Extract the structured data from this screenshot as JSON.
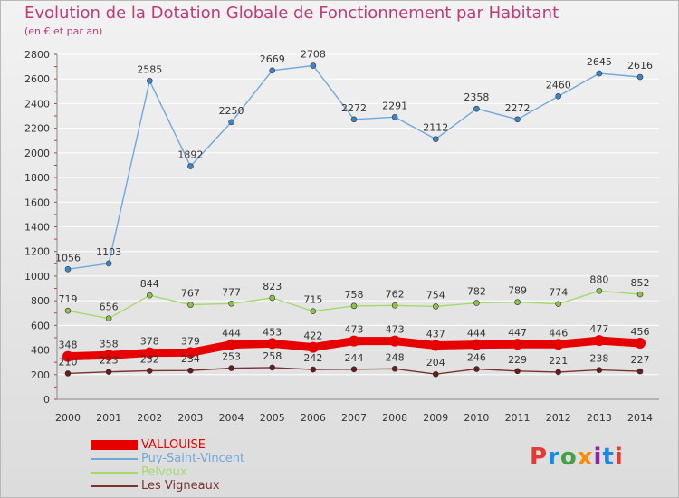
{
  "header": {
    "title": "Evolution de la Dotation Globale de Fonctionnement par Habitant",
    "subtitle": "(en € et par an)"
  },
  "brand": {
    "logo": "Proxiti",
    "colors": [
      "#e53935",
      "#1e88e5",
      "#43a047",
      "#fb8c00",
      "#8e24aa",
      "#1e88e5",
      "#e53935"
    ]
  },
  "colors": {
    "title": "#c03a78",
    "axis": "#333333",
    "grid": "#ffffff"
  },
  "chart_data": {
    "type": "line",
    "title": "Evolution de la Dotation Globale de Fonctionnement par Habitant",
    "subtitle": "(en € et par an)",
    "xlabel": "",
    "ylabel": "",
    "ylim": [
      0,
      2800
    ],
    "yticks": [
      0,
      200,
      400,
      600,
      800,
      1000,
      1200,
      1400,
      1600,
      1800,
      2000,
      2200,
      2400,
      2600,
      2800
    ],
    "categories": [
      "2000",
      "2001",
      "2002",
      "2003",
      "2004",
      "2005",
      "2006",
      "2007",
      "2008",
      "2009",
      "2010",
      "2011",
      "2012",
      "2013",
      "2014"
    ],
    "grid": true,
    "legend_position": "bottom-left",
    "series": [
      {
        "name": "VALLOUISE",
        "color": "#e60000",
        "marker": "#e60000",
        "weight": "thick",
        "values": [
          348,
          358,
          378,
          379,
          444,
          453,
          422,
          473,
          473,
          437,
          444,
          447,
          446,
          477,
          456
        ]
      },
      {
        "name": "Puy-Saint-Vincent",
        "color": "#6fa8dc",
        "marker": "#3d85c6",
        "weight": "thin",
        "values": [
          1056,
          1103,
          2585,
          1892,
          2250,
          2669,
          2708,
          2272,
          2291,
          2112,
          2358,
          2272,
          2460,
          2645,
          2616
        ]
      },
      {
        "name": "Pelvoux",
        "color": "#a4d96c",
        "marker": "#8bc34a",
        "weight": "thin",
        "values": [
          719,
          656,
          844,
          767,
          777,
          823,
          715,
          758,
          762,
          754,
          782,
          789,
          774,
          880,
          852
        ]
      },
      {
        "name": "Les Vigneaux",
        "color": "#7a3333",
        "marker": "#6b1a1a",
        "weight": "thin",
        "values": [
          210,
          223,
          232,
          234,
          253,
          258,
          242,
          244,
          248,
          204,
          246,
          229,
          221,
          238,
          227
        ]
      }
    ]
  }
}
